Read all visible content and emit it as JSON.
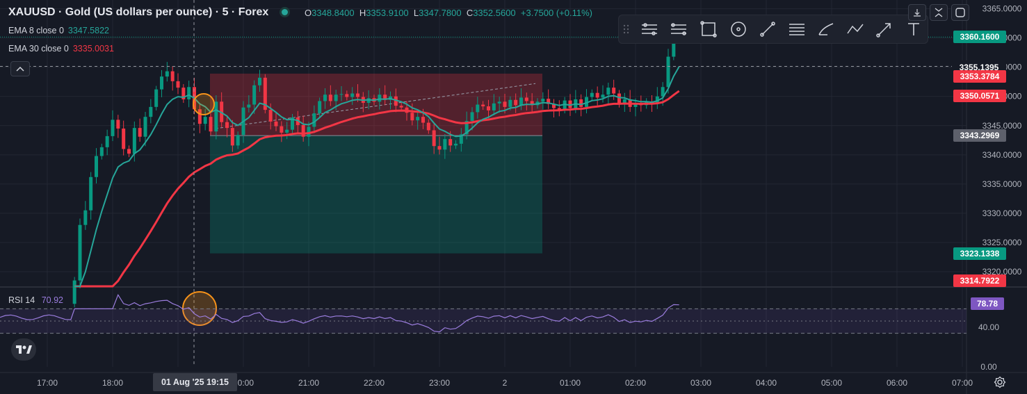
{
  "header": {
    "title": "XAUUSD · Gold (US dollars per ounce) · 5 · Forex",
    "ohlc": [
      {
        "key": "O",
        "value": "3348.8400"
      },
      {
        "key": "H",
        "value": "3353.9100"
      },
      {
        "key": "L",
        "value": "3347.7800"
      },
      {
        "key": "C",
        "value": "3352.5600"
      }
    ],
    "change": "+3.7500 (+0.11%)",
    "status_color": "#26a69a"
  },
  "indicators": [
    {
      "name": "EMA 8 close 0",
      "value": "3347.5822",
      "color": "#26a69a"
    },
    {
      "name": "EMA 30 close 0",
      "value": "3335.0031",
      "color": "#f23645"
    }
  ],
  "rsi": {
    "name": "RSI 14",
    "value": "70.92",
    "color": "#9b7dde",
    "badge": "78.78",
    "ticks": [
      "40.00",
      "0.00"
    ]
  },
  "toolbar_icons": [
    "trend-channel-icon",
    "parallel-lines-icon",
    "rectangle-icon",
    "circle-icon",
    "line-icon",
    "horizontal-lines-icon",
    "brush-icon",
    "path-icon",
    "arrow-icon",
    "text-icon"
  ],
  "price_labels": [
    {
      "text": "3360.1600",
      "color": "#089981"
    },
    {
      "text": "3355.1395",
      "color": "#161a25"
    },
    {
      "text": "3353.3784",
      "color": "#f23645"
    },
    {
      "text": "3350.0571",
      "color": "#f23645"
    },
    {
      "text": "3343.2969",
      "color": "#5d606b"
    },
    {
      "text": "3323.1338",
      "color": "#089981"
    },
    {
      "text": "3314.7922",
      "color": "#f23645"
    }
  ],
  "crosshair_time": "01 Aug '25   19:15",
  "chart_data": {
    "type": "candlestick",
    "title": "XAUUSD · Gold (US dollars per ounce) · 5 · Forex",
    "y_ticks": [
      3365,
      3360,
      3355,
      3350,
      3345,
      3340,
      3335,
      3330,
      3325,
      3320
    ],
    "y_tick_labels": [
      "3365.0000",
      "3360.0000",
      "3355.0000",
      "3350.0000",
      "3345.0000",
      "3340.0000",
      "3335.0000",
      "3330.0000",
      "3325.0000",
      "3320.0000"
    ],
    "ylim": [
      3317.5,
      3366.5
    ],
    "x_ticks": [
      "17:00",
      "18:00",
      "",
      "20:00",
      "21:00",
      "22:00",
      "23:00",
      "2",
      "01:00",
      "02:00",
      "03:00",
      "04:00",
      "05:00",
      "06:00",
      "07:00"
    ],
    "x_tick_labels": [
      "17:00",
      "18:00",
      "20:00",
      "21:00",
      "22:00",
      "23:00",
      "2",
      "01:00",
      "02:00",
      "03:00",
      "04:00",
      "05:00",
      "06:00",
      "07:00"
    ],
    "bar_minutes": 5,
    "first_bar": "17:25",
    "candles_close": [
      3318.5,
      3328.0,
      3330.5,
      3336.2,
      3339.8,
      3341.3,
      3343.2,
      3346.0,
      3344.5,
      3341.0,
      3340.2,
      3344.6,
      3343.1,
      3346.5,
      3348.2,
      3351.2,
      3353.4,
      3354.3,
      3352.6,
      3351.5,
      3349.5,
      3351.6,
      3347.8,
      3345.3,
      3346.5,
      3344.0,
      3349.1,
      3345.6,
      3344.6,
      3341.6,
      3343.4,
      3348.1,
      3348.6,
      3351.9,
      3353.2,
      3347.7,
      3345.7,
      3344.9,
      3343.8,
      3344.3,
      3346.4,
      3345.1,
      3343.1,
      3344.8,
      3347.1,
      3349.2,
      3350.3,
      3349.2,
      3350.3,
      3350.4,
      3349.9,
      3350.5,
      3349.9,
      3348.9,
      3349.7,
      3349.1,
      3350.3,
      3349.4,
      3350.0,
      3348.4,
      3348.1,
      3347.2,
      3345.9,
      3346.5,
      3345.5,
      3344.2,
      3341.5,
      3340.9,
      3342.7,
      3341.6,
      3341.9,
      3343.5,
      3345.8,
      3347.3,
      3348.6,
      3348.3,
      3347.6,
      3348.8,
      3349.1,
      3348.2,
      3349.4,
      3348.5,
      3349.8,
      3349.2,
      3348.5,
      3349.1,
      3349.6,
      3348.7,
      3348.0,
      3347.7,
      3349.3,
      3348.0,
      3349.5,
      3348.2,
      3349.9,
      3350.6,
      3349.8,
      3350.3,
      3351.5,
      3350.5,
      3348.7,
      3349.5,
      3348.2,
      3348.8,
      3348.5,
      3349.1,
      3348.7,
      3350.0,
      3351.6,
      3356.8,
      3360.9,
      3360.8
    ],
    "ema8_last": 3347.5822,
    "ema30_last": 3335.0031,
    "position_box": {
      "entry": 3343.2969,
      "target": 3323.1338,
      "stop": 3353.9
    },
    "current_price": 3360.16,
    "crosshair_price": 3355.1395
  }
}
